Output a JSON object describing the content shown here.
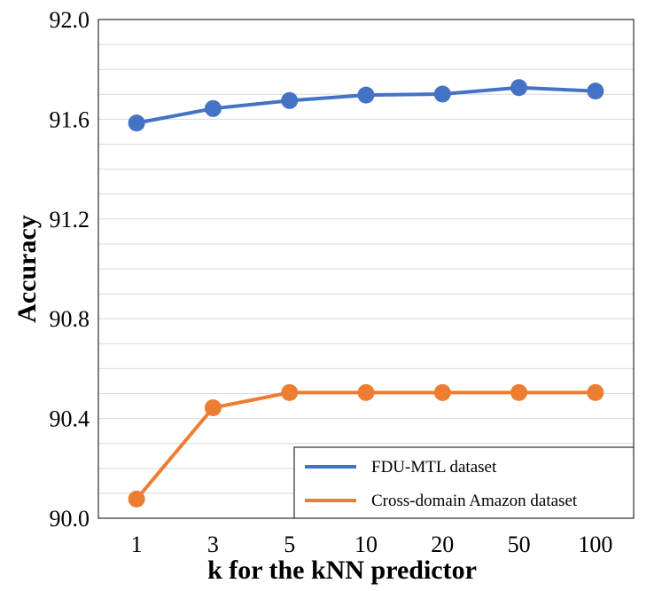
{
  "chart_data": {
    "type": "line",
    "title": "",
    "xlabel": "k for the kNN predictor",
    "ylabel": "Accuracy",
    "categories": [
      "1",
      "3",
      "5",
      "10",
      "20",
      "50",
      "100"
    ],
    "ylim": [
      90.0,
      92.0
    ],
    "yticks": [
      "90.0",
      "90.4",
      "90.8",
      "91.2",
      "91.6",
      "92.0"
    ],
    "grid": true,
    "legend_position": "bottom-right",
    "series": [
      {
        "name": "FDU-MTL dataset",
        "color": "#4472C4",
        "values": [
          91.585,
          91.643,
          91.675,
          91.697,
          91.701,
          91.727,
          91.713
        ]
      },
      {
        "name": "Cross-domain Amazon dataset",
        "color": "#ED7D31",
        "values": [
          90.077,
          90.443,
          90.504,
          90.504,
          90.504,
          90.504,
          90.504
        ]
      }
    ]
  }
}
